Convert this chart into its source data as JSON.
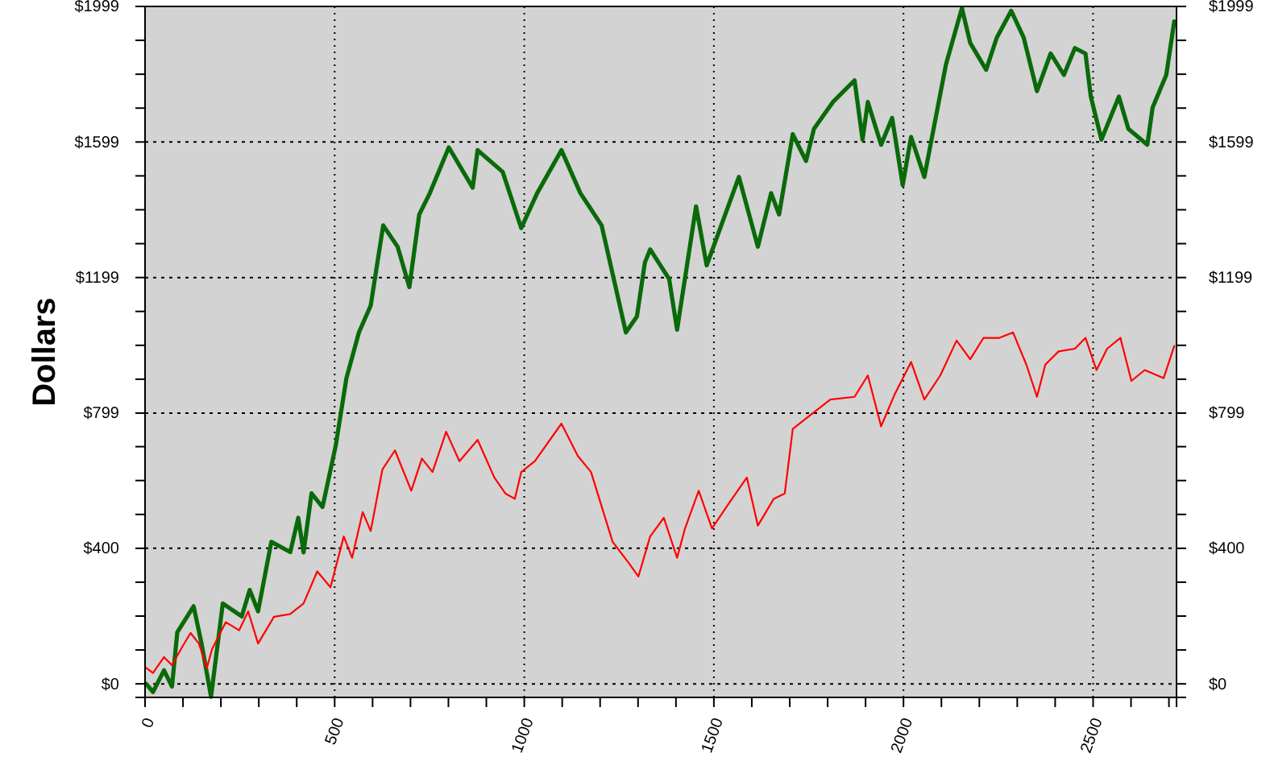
{
  "chart_data": {
    "type": "line",
    "ylabel": "Dollars",
    "xlim": [
      0,
      2720
    ],
    "ylim": [
      -40,
      1999
    ],
    "y2lim": [
      -40,
      1999
    ],
    "xticks": [
      0,
      {
        "value": 100,
        "label": null
      },
      {
        "value": 200,
        "label": null
      },
      {
        "value": 300,
        "label": null
      },
      {
        "value": 400,
        "label": null
      },
      500,
      {
        "value": 600,
        "label": null
      },
      {
        "value": 700,
        "label": null
      },
      {
        "value": 800,
        "label": null
      },
      {
        "value": 900,
        "label": null
      },
      1000,
      {
        "value": 1100,
        "label": null
      },
      {
        "value": 1200,
        "label": null
      },
      {
        "value": 1300,
        "label": null
      },
      {
        "value": 1400,
        "label": null
      },
      1500,
      {
        "value": 1600,
        "label": null
      },
      {
        "value": 1700,
        "label": null
      },
      {
        "value": 1800,
        "label": null
      },
      {
        "value": 1900,
        "label": null
      },
      2000,
      {
        "value": 2100,
        "label": null
      },
      {
        "value": 2200,
        "label": null
      },
      {
        "value": 2300,
        "label": null
      },
      {
        "value": 2400,
        "label": null
      },
      2500,
      {
        "value": 2600,
        "label": null
      },
      {
        "value": 2700,
        "label": null
      }
    ],
    "yticks": [
      {
        "value": 0,
        "label": "$0"
      },
      {
        "value": 100,
        "label": null
      },
      {
        "value": 200,
        "label": null
      },
      {
        "value": 300,
        "label": null
      },
      {
        "value": 400,
        "label": "$400"
      },
      {
        "value": 500,
        "label": null
      },
      {
        "value": 600,
        "label": null
      },
      {
        "value": 700,
        "label": null
      },
      {
        "value": 799,
        "label": "$799"
      },
      {
        "value": 899,
        "label": null
      },
      {
        "value": 999,
        "label": null
      },
      {
        "value": 1099,
        "label": null
      },
      {
        "value": 1199,
        "label": "$1199"
      },
      {
        "value": 1299,
        "label": null
      },
      {
        "value": 1399,
        "label": null
      },
      {
        "value": 1499,
        "label": null
      },
      {
        "value": 1599,
        "label": "$1599"
      },
      {
        "value": 1699,
        "label": null
      },
      {
        "value": 1799,
        "label": null
      },
      {
        "value": 1899,
        "label": null
      },
      {
        "value": 1999,
        "label": "$1999"
      }
    ],
    "y2ticks": [
      {
        "value": 0,
        "label": "$0"
      },
      {
        "value": 100,
        "label": null
      },
      {
        "value": 200,
        "label": null
      },
      {
        "value": 300,
        "label": null
      },
      {
        "value": 400,
        "label": "$400"
      },
      {
        "value": 500,
        "label": null
      },
      {
        "value": 600,
        "label": null
      },
      {
        "value": 700,
        "label": null
      },
      {
        "value": 799,
        "label": "$799"
      },
      {
        "value": 899,
        "label": null
      },
      {
        "value": 999,
        "label": null
      },
      {
        "value": 1099,
        "label": null
      },
      {
        "value": 1199,
        "label": "$1199"
      },
      {
        "value": 1299,
        "label": null
      },
      {
        "value": 1399,
        "label": null
      },
      {
        "value": 1499,
        "label": null
      },
      {
        "value": 1599,
        "label": "$1599"
      },
      {
        "value": 1699,
        "label": null
      },
      {
        "value": 1799,
        "label": null
      },
      {
        "value": 1899,
        "label": null
      },
      {
        "value": 1999,
        "label": "$1999"
      }
    ],
    "grid": true,
    "marker": "none",
    "line_style": "solid",
    "series": [
      {
        "color": "#0a6a0a",
        "x": [
          3,
          21,
          50,
          71,
          85,
          128,
          149,
          174,
          205,
          255,
          276,
          298,
          333,
          383,
          404,
          418,
          439,
          468,
          503,
          531,
          564,
          595,
          628,
          666,
          697,
          723,
          751,
          801,
          864,
          877,
          943,
          992,
          1034,
          1098,
          1148,
          1204,
          1268,
          1297,
          1318,
          1332,
          1382,
          1403,
          1453,
          1481,
          1566,
          1616,
          1651,
          1672,
          1708,
          1743,
          1764,
          1814,
          1871,
          1892,
          1906,
          1941,
          1970,
          1998,
          2020,
          2055,
          2112,
          2154,
          2176,
          2218,
          2246,
          2284,
          2317,
          2352,
          2388,
          2423,
          2452,
          2480,
          2494,
          2522,
          2568,
          2593,
          2643,
          2657,
          2693,
          2714
        ],
        "values": [
          0,
          -24,
          40,
          -8,
          152,
          229,
          119,
          -38,
          237,
          199,
          277,
          214,
          419,
          389,
          490,
          388,
          562,
          522,
          704,
          902,
          1037,
          1116,
          1353,
          1290,
          1171,
          1385,
          1448,
          1583,
          1464,
          1575,
          1511,
          1345,
          1448,
          1575,
          1448,
          1353,
          1037,
          1084,
          1243,
          1282,
          1195,
          1045,
          1409,
          1235,
          1496,
          1290,
          1448,
          1385,
          1622,
          1543,
          1638,
          1717,
          1781,
          1606,
          1717,
          1591,
          1670,
          1472,
          1614,
          1496,
          1828,
          1994,
          1891,
          1812,
          1907,
          1986,
          1907,
          1749,
          1860,
          1797,
          1876,
          1860,
          1733,
          1606,
          1733,
          1638,
          1591,
          1701,
          1797,
          1955
        ]
      },
      {
        "color": "#ff0000",
        "x": [
          3,
          21,
          50,
          71,
          99,
          120,
          142,
          163,
          177,
          213,
          248,
          272,
          298,
          340,
          383,
          418,
          454,
          489,
          524,
          546,
          574,
          595,
          626,
          659,
          702,
          730,
          758,
          794,
          829,
          877,
          921,
          950,
          975,
          992,
          1028,
          1098,
          1141,
          1176,
          1233,
          1276,
          1301,
          1332,
          1368,
          1403,
          1424,
          1460,
          1495,
          1538,
          1587,
          1616,
          1658,
          1687,
          1708,
          1743,
          1807,
          1871,
          1906,
          1941,
          1977,
          2020,
          2055,
          2097,
          2140,
          2176,
          2211,
          2253,
          2289,
          2324,
          2352,
          2374,
          2409,
          2452,
          2480,
          2509,
          2537,
          2572,
          2601,
          2636,
          2686,
          2714
        ],
        "values": [
          47,
          32,
          79,
          55,
          111,
          150,
          119,
          47,
          103,
          182,
          158,
          214,
          119,
          198,
          206,
          237,
          332,
          285,
          435,
          372,
          507,
          451,
          633,
          689,
          570,
          665,
          625,
          744,
          657,
          720,
          609,
          562,
          546,
          625,
          657,
          768,
          673,
          625,
          419,
          356,
          317,
          435,
          490,
          372,
          459,
          570,
          459,
          530,
          609,
          467,
          546,
          562,
          752,
          783,
          839,
          847,
          910,
          760,
          855,
          950,
          839,
          910,
          1013,
          958,
          1021,
          1021,
          1037,
          942,
          847,
          942,
          981,
          989,
          1021,
          926,
          989,
          1021,
          894,
          926,
          902,
          997
        ]
      }
    ]
  }
}
